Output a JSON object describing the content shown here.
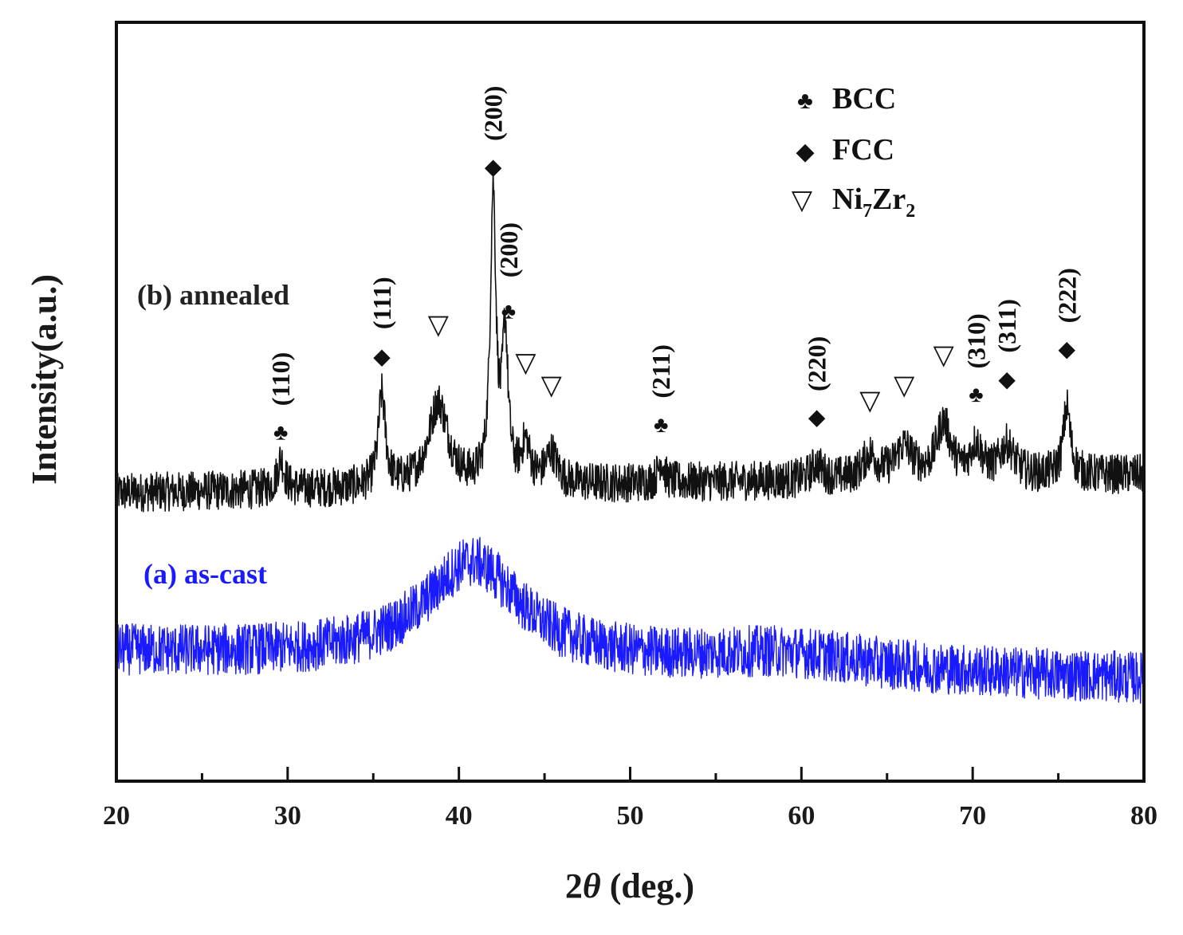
{
  "chart_data": {
    "type": "line",
    "title": "",
    "xlabel_main": "2",
    "xlabel_theta": "θ",
    "xlabel_rest": " (deg.)",
    "ylabel": "Intensity(a.u.)",
    "xlim": [
      20,
      80
    ],
    "ylim": [
      0,
      100
    ],
    "x_ticks": [
      20,
      30,
      40,
      50,
      60,
      70,
      80
    ],
    "x_tick_labels": [
      "20",
      "30",
      "40",
      "50",
      "60",
      "70",
      "80"
    ],
    "x_minor_ticks": [
      25,
      35,
      45,
      55,
      65,
      75
    ],
    "y_ticks_shown": false,
    "legend_placement": "top-right",
    "legend": [
      {
        "symbol": "club",
        "glyph": "♣",
        "label": "BCC"
      },
      {
        "symbol": "diamond",
        "glyph": "◆",
        "label": "FCC"
      },
      {
        "symbol": "triangle-down",
        "glyph": "▽",
        "label_main": "Ni",
        "label_sub1": "7",
        "label_mid": "Zr",
        "label_sub2": "2"
      }
    ],
    "series": [
      {
        "name": "(b) annealed",
        "color": "#111111",
        "baseline": 38,
        "baseline_slope": 0.04,
        "noise": 2.6,
        "peaks": [
          {
            "x": 29.6,
            "height": 4,
            "width": 0.25
          },
          {
            "x": 35.5,
            "height": 12,
            "width": 0.25
          },
          {
            "x": 38.8,
            "height": 11,
            "width": 0.7
          },
          {
            "x": 42.0,
            "height": 38,
            "width": 0.2
          },
          {
            "x": 42.7,
            "height": 19,
            "width": 0.2
          },
          {
            "x": 43.9,
            "height": 5,
            "width": 0.3
          },
          {
            "x": 45.4,
            "height": 4,
            "width": 0.4
          },
          {
            "x": 51.8,
            "height": 3,
            "width": 0.2
          },
          {
            "x": 60.9,
            "height": 2,
            "width": 0.4
          },
          {
            "x": 64.0,
            "height": 3,
            "width": 0.5
          },
          {
            "x": 66.0,
            "height": 4,
            "width": 0.6
          },
          {
            "x": 68.3,
            "height": 7,
            "width": 0.5
          },
          {
            "x": 70.2,
            "height": 4,
            "width": 0.4
          },
          {
            "x": 72.0,
            "height": 4,
            "width": 0.5
          },
          {
            "x": 75.5,
            "height": 9,
            "width": 0.25
          }
        ]
      },
      {
        "name": "(a) as-cast",
        "color": "#1a1aff",
        "baseline": 17,
        "baseline_slope": -0.06,
        "noise": 3.4,
        "peaks": [
          {
            "x": 40.8,
            "height": 13,
            "width": 3.4
          },
          {
            "x": 59.0,
            "height": 2,
            "width": 6.0
          }
        ]
      }
    ],
    "annotations": [
      {
        "x": 29.6,
        "hkl": "(110)",
        "marker": "♣",
        "marker_y": 45,
        "label_y": 53
      },
      {
        "x": 35.5,
        "hkl": "(111)",
        "marker": "◆",
        "marker_y": 55,
        "label_y": 63
      },
      {
        "x": 38.8,
        "hkl": "",
        "marker": "▽",
        "marker_y": 59,
        "label_y": 0
      },
      {
        "x": 42.0,
        "hkl": "(200)",
        "marker": "◆",
        "marker_y": 80,
        "label_y": 88
      },
      {
        "x": 42.9,
        "hkl": "(200)",
        "marker": "♣",
        "marker_y": 61,
        "label_y": 70
      },
      {
        "x": 43.9,
        "hkl": "",
        "marker": "▽",
        "marker_y": 54,
        "label_y": 0
      },
      {
        "x": 45.4,
        "hkl": "",
        "marker": "▽",
        "marker_y": 51,
        "label_y": 0
      },
      {
        "x": 51.8,
        "hkl": "(211)",
        "marker": "♣",
        "marker_y": 46,
        "label_y": 54
      },
      {
        "x": 60.9,
        "hkl": "(220)",
        "marker": "◆",
        "marker_y": 47,
        "label_y": 55
      },
      {
        "x": 64.0,
        "hkl": "",
        "marker": "▽",
        "marker_y": 49,
        "label_y": 0
      },
      {
        "x": 66.0,
        "hkl": "",
        "marker": "▽",
        "marker_y": 51,
        "label_y": 0
      },
      {
        "x": 68.3,
        "hkl": "",
        "marker": "▽",
        "marker_y": 55,
        "label_y": 0
      },
      {
        "x": 70.2,
        "hkl": "(310)",
        "marker": "♣",
        "marker_y": 50,
        "label_y": 58
      },
      {
        "x": 72.0,
        "hkl": "(311)",
        "marker": "◆",
        "marker_y": 52,
        "label_y": 60
      },
      {
        "x": 75.5,
        "hkl": "(222)",
        "marker": "◆",
        "marker_y": 56,
        "label_y": 64
      }
    ]
  }
}
